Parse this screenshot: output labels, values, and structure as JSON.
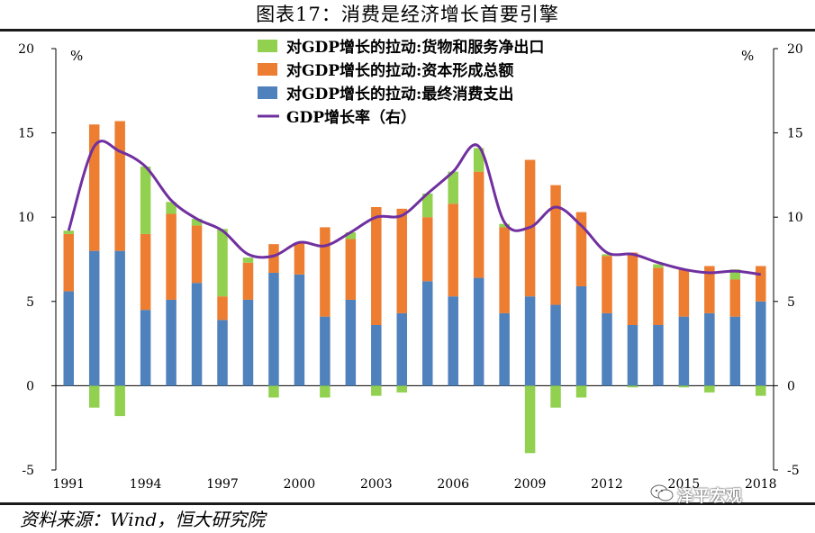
{
  "title": "图表17：消费是经济增长首要引擎",
  "source": "资料来源：Wind，恒大研究院",
  "watermark": "泽平宏观",
  "colors": {
    "net_exports": "#92d050",
    "capital": "#ed7d31",
    "consumption": "#4f81bd",
    "gdp_line": "#7030a0",
    "axis": "#000000"
  },
  "chart_data": {
    "type": "bar",
    "stacked": true,
    "left_unit": "%",
    "right_unit": "%",
    "ylim": [
      -5,
      20
    ],
    "yticks": [
      -5,
      0,
      5,
      10,
      15,
      20
    ],
    "right_ylim": [
      -5,
      20
    ],
    "right_yticks": [
      -5,
      0,
      5,
      10,
      15,
      20
    ],
    "x": [
      1991,
      1992,
      1993,
      1994,
      1995,
      1996,
      1997,
      1998,
      1999,
      2000,
      2001,
      2002,
      2003,
      2004,
      2005,
      2006,
      2007,
      2008,
      2009,
      2010,
      2011,
      2012,
      2013,
      2014,
      2015,
      2016,
      2017,
      2018
    ],
    "xticks": [
      "1991",
      "1994",
      "1997",
      "2000",
      "2003",
      "2006",
      "2009",
      "2012",
      "2015",
      "2018"
    ],
    "legend_position": "top-center",
    "series": [
      {
        "name": "对GDP增长的拉动:货物和服务净出口",
        "type": "bar",
        "values": [
          0.2,
          -1.3,
          -1.8,
          4.0,
          0.7,
          0.4,
          4.0,
          0.3,
          -0.7,
          0.0,
          -0.7,
          0.4,
          -0.6,
          -0.4,
          1.4,
          1.9,
          1.4,
          0.2,
          -4.0,
          -1.3,
          -0.7,
          0.1,
          -0.1,
          0.2,
          -0.1,
          -0.4,
          0.6,
          -0.6
        ]
      },
      {
        "name": "对GDP增长的拉动:资本形成总额",
        "type": "bar",
        "values": [
          3.4,
          7.5,
          7.7,
          4.5,
          5.1,
          3.4,
          1.4,
          2.2,
          1.7,
          1.9,
          5.3,
          3.6,
          7.0,
          6.2,
          3.8,
          5.5,
          6.3,
          5.1,
          8.1,
          7.1,
          4.4,
          3.4,
          4.3,
          3.4,
          2.8,
          2.8,
          2.2,
          2.1
        ]
      },
      {
        "name": "对GDP增长的拉动:最终消费支出",
        "type": "bar",
        "values": [
          5.6,
          8.0,
          8.0,
          4.5,
          5.1,
          6.1,
          3.9,
          5.1,
          6.7,
          6.6,
          4.1,
          5.1,
          3.6,
          4.3,
          6.2,
          5.3,
          6.4,
          4.3,
          5.3,
          4.8,
          5.9,
          4.3,
          3.6,
          3.6,
          4.1,
          4.3,
          4.1,
          5.0
        ]
      },
      {
        "name": "GDP增长率（右）",
        "type": "line",
        "axis": "right",
        "values": [
          9.2,
          14.2,
          13.9,
          13.0,
          11.0,
          9.9,
          9.2,
          7.8,
          7.7,
          8.5,
          8.3,
          9.1,
          10.0,
          10.1,
          11.4,
          12.7,
          14.2,
          9.7,
          9.4,
          10.6,
          9.5,
          7.9,
          7.8,
          7.3,
          6.9,
          6.7,
          6.8,
          6.6
        ]
      }
    ]
  }
}
